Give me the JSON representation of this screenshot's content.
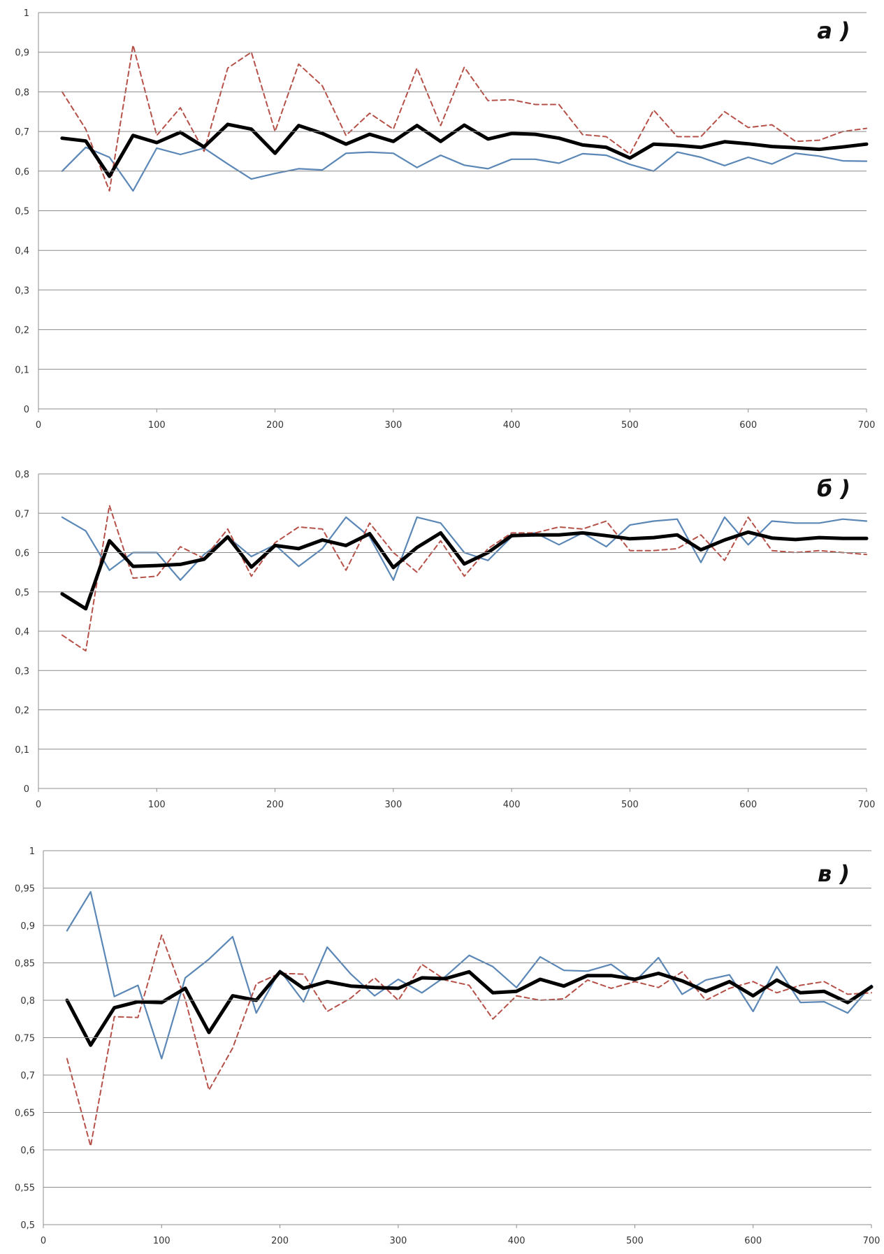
{
  "chart_data": [
    {
      "type": "line",
      "panel_label": "a )",
      "xlim": [
        0,
        700
      ],
      "x_ticks": [
        "0",
        "100",
        "200",
        "300",
        "400",
        "500",
        "600",
        "700"
      ],
      "ylim": [
        0,
        1
      ],
      "y_ticks": [
        "0",
        "0,1",
        "0,2",
        "0,3",
        "0,4",
        "0,5",
        "0,6",
        "0,7",
        "0,8",
        "0,9",
        "1"
      ],
      "grid": true,
      "x": [
        20,
        40,
        60,
        80,
        100,
        120,
        140,
        160,
        180,
        200,
        220,
        240,
        260,
        280,
        300,
        320,
        340,
        360,
        380,
        400,
        420,
        440,
        460,
        480,
        500,
        520,
        540,
        560,
        580,
        600,
        620,
        640,
        660,
        680,
        700
      ],
      "series": [
        {
          "style": "solid-blue",
          "color": "#5b87b6",
          "values": [
            0.6,
            0.66,
            0.635,
            0.55,
            0.658,
            0.642,
            0.658,
            0.618,
            0.58,
            0.594,
            0.606,
            0.603,
            0.645,
            0.648,
            0.645,
            0.609,
            0.64,
            0.615,
            0.606,
            0.63,
            0.63,
            0.62,
            0.644,
            0.64,
            0.617,
            0.6,
            0.648,
            0.635,
            0.614,
            0.635,
            0.618,
            0.645,
            0.638,
            0.626,
            0.625
          ]
        },
        {
          "style": "dashed-red",
          "color": "#b55148",
          "values": [
            0.8,
            0.706,
            0.55,
            0.918,
            0.69,
            0.76,
            0.65,
            0.86,
            0.9,
            0.7,
            0.87,
            0.815,
            0.69,
            0.746,
            0.706,
            0.86,
            0.715,
            0.862,
            0.778,
            0.78,
            0.768,
            0.768,
            0.692,
            0.687,
            0.643,
            0.754,
            0.687,
            0.687,
            0.75,
            0.71,
            0.717,
            0.675,
            0.678,
            0.7,
            0.708
          ]
        },
        {
          "style": "thick-black",
          "color": "#000000",
          "values": [
            0.683,
            0.676,
            0.587,
            0.69,
            0.672,
            0.698,
            0.661,
            0.718,
            0.706,
            0.645,
            0.715,
            0.695,
            0.668,
            0.693,
            0.675,
            0.715,
            0.675,
            0.716,
            0.681,
            0.695,
            0.693,
            0.683,
            0.666,
            0.66,
            0.633,
            0.668,
            0.665,
            0.66,
            0.674,
            0.669,
            0.662,
            0.659,
            0.655,
            0.661,
            0.668
          ]
        }
      ]
    },
    {
      "type": "line",
      "panel_label": "б )",
      "xlim": [
        0,
        700
      ],
      "x_ticks": [
        "0",
        "100",
        "200",
        "300",
        "400",
        "500",
        "600",
        "700"
      ],
      "ylim": [
        0,
        0.8
      ],
      "y_ticks": [
        "0",
        "0,1",
        "0,2",
        "0,3",
        "0,4",
        "0,5",
        "0,6",
        "0,7",
        "0,8"
      ],
      "grid": true,
      "x": [
        20,
        40,
        60,
        80,
        100,
        120,
        140,
        160,
        180,
        200,
        220,
        240,
        260,
        280,
        300,
        320,
        340,
        360,
        380,
        400,
        420,
        440,
        460,
        480,
        500,
        520,
        540,
        560,
        580,
        600,
        620,
        640,
        660,
        680,
        700
      ],
      "series": [
        {
          "style": "solid-blue",
          "color": "#5b87b6",
          "values": [
            0.69,
            0.655,
            0.555,
            0.6,
            0.6,
            0.53,
            0.595,
            0.64,
            0.59,
            0.62,
            0.565,
            0.61,
            0.69,
            0.64,
            0.53,
            0.69,
            0.675,
            0.6,
            0.58,
            0.64,
            0.65,
            0.62,
            0.65,
            0.615,
            0.67,
            0.68,
            0.685,
            0.575,
            0.69,
            0.62,
            0.68,
            0.675,
            0.675,
            0.685,
            0.68
          ]
        },
        {
          "style": "dashed-red",
          "color": "#b55148",
          "values": [
            0.39,
            0.35,
            0.72,
            0.535,
            0.54,
            0.615,
            0.585,
            0.66,
            0.54,
            0.625,
            0.665,
            0.66,
            0.555,
            0.675,
            0.6,
            0.55,
            0.63,
            0.54,
            0.61,
            0.65,
            0.65,
            0.665,
            0.66,
            0.68,
            0.605,
            0.605,
            0.61,
            0.645,
            0.58,
            0.69,
            0.605,
            0.6,
            0.605,
            0.6,
            0.595
          ]
        },
        {
          "style": "thick-black",
          "color": "#000000",
          "values": [
            0.495,
            0.457,
            0.63,
            0.565,
            0.567,
            0.57,
            0.583,
            0.64,
            0.563,
            0.618,
            0.61,
            0.632,
            0.618,
            0.648,
            0.562,
            0.613,
            0.65,
            0.571,
            0.6,
            0.643,
            0.645,
            0.645,
            0.65,
            0.643,
            0.635,
            0.638,
            0.645,
            0.607,
            0.632,
            0.652,
            0.637,
            0.633,
            0.638,
            0.636,
            0.636
          ]
        }
      ]
    },
    {
      "type": "line",
      "panel_label": "в )",
      "xlim": [
        0,
        700
      ],
      "x_ticks": [
        "0",
        "100",
        "200",
        "300",
        "400",
        "500",
        "600",
        "700"
      ],
      "ylim": [
        0.5,
        1
      ],
      "y_ticks": [
        "0,5",
        "0,55",
        "0,6",
        "0,65",
        "0,7",
        "0,75",
        "0,8",
        "0,85",
        "0,9",
        "0,95",
        "1"
      ],
      "grid": true,
      "x": [
        20,
        40,
        60,
        80,
        100,
        120,
        140,
        160,
        180,
        200,
        220,
        240,
        260,
        280,
        300,
        320,
        340,
        360,
        380,
        400,
        420,
        440,
        460,
        480,
        500,
        520,
        540,
        560,
        580,
        600,
        620,
        640,
        660,
        680,
        700
      ],
      "series": [
        {
          "style": "solid-blue",
          "color": "#5b87b6",
          "values": [
            0.893,
            0.945,
            0.805,
            0.82,
            0.722,
            0.83,
            0.855,
            0.885,
            0.783,
            0.84,
            0.798,
            0.871,
            0.835,
            0.806,
            0.828,
            0.81,
            0.832,
            0.86,
            0.845,
            0.817,
            0.858,
            0.84,
            0.839,
            0.848,
            0.825,
            0.857,
            0.808,
            0.827,
            0.834,
            0.785,
            0.845,
            0.797,
            0.798,
            0.783,
            0.82
          ]
        },
        {
          "style": "dashed-red",
          "color": "#b55148",
          "values": [
            0.722,
            0.605,
            0.778,
            0.777,
            0.887,
            0.801,
            0.68,
            0.736,
            0.822,
            0.836,
            0.835,
            0.785,
            0.803,
            0.83,
            0.8,
            0.848,
            0.827,
            0.82,
            0.775,
            0.806,
            0.8,
            0.802,
            0.827,
            0.816,
            0.825,
            0.817,
            0.838,
            0.8,
            0.816,
            0.825,
            0.81,
            0.82,
            0.825,
            0.808,
            0.81
          ]
        },
        {
          "style": "thick-black",
          "color": "#000000",
          "values": [
            0.8,
            0.74,
            0.79,
            0.798,
            0.797,
            0.816,
            0.757,
            0.806,
            0.8,
            0.838,
            0.816,
            0.825,
            0.819,
            0.817,
            0.816,
            0.83,
            0.829,
            0.838,
            0.81,
            0.812,
            0.828,
            0.819,
            0.833,
            0.833,
            0.828,
            0.836,
            0.826,
            0.812,
            0.825,
            0.806,
            0.827,
            0.81,
            0.812,
            0.797,
            0.818
          ]
        }
      ]
    }
  ]
}
